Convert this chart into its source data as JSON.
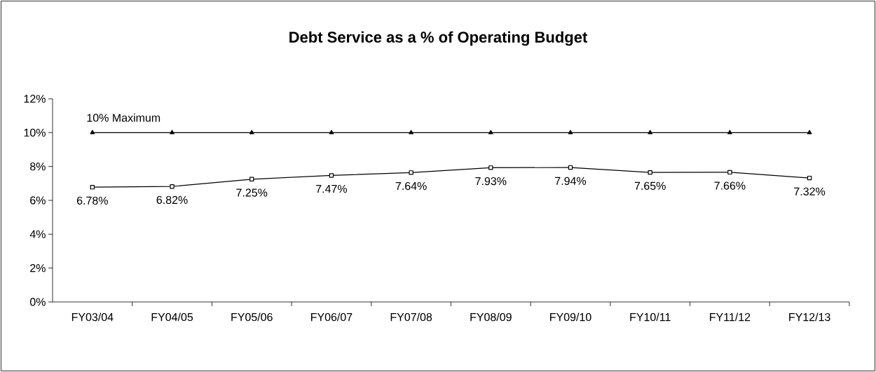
{
  "chart_data": {
    "type": "line",
    "title": "Debt Service as a % of Operating Budget",
    "categories": [
      "FY03/04",
      "FY04/05",
      "FY05/06",
      "FY06/07",
      "FY07/08",
      "FY08/09",
      "FY09/10",
      "FY10/11",
      "FY11/12",
      "FY12/13"
    ],
    "series": [
      {
        "name": "10% Maximum",
        "color": "#000000",
        "marker": "triangle",
        "values": [
          10,
          10,
          10,
          10,
          10,
          10,
          10,
          10,
          10,
          10
        ]
      },
      {
        "color": "#000000",
        "marker": "square",
        "values": [
          6.78,
          6.82,
          7.25,
          7.47,
          7.64,
          7.93,
          7.94,
          7.65,
          7.66,
          7.32
        ],
        "value_labels": [
          "6.78%",
          "6.82%",
          "7.25%",
          "7.47%",
          "7.64%",
          "7.93%",
          "7.94%",
          "7.65%",
          "7.66%",
          "7.32%"
        ]
      }
    ],
    "ylim": [
      0,
      12
    ],
    "yticks": [
      {
        "value": 0,
        "label": "0%"
      },
      {
        "value": 2,
        "label": "2%"
      },
      {
        "value": 4,
        "label": "4%"
      },
      {
        "value": 6,
        "label": "6%"
      },
      {
        "value": 8,
        "label": "8%"
      },
      {
        "value": 10,
        "label": "10%"
      },
      {
        "value": 12,
        "label": "12%"
      }
    ],
    "grid": false,
    "legend": false,
    "line_style": "solid"
  }
}
